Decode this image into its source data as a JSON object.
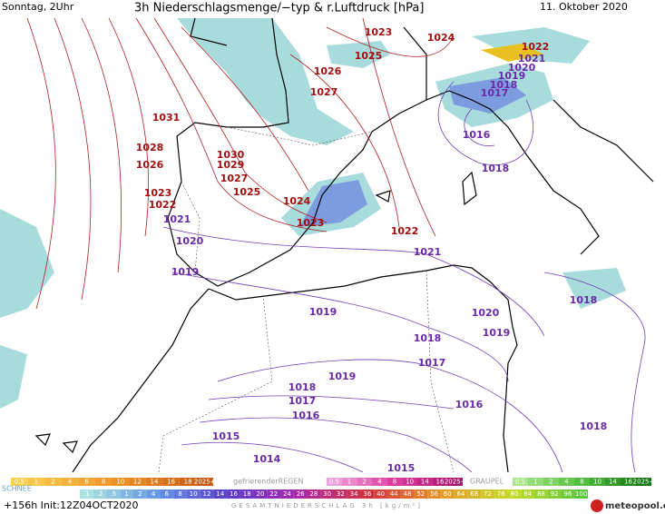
{
  "header": {
    "left": "Sonntag, 2Uhr",
    "title": "3h Niederschlagsmenge/−typ & r.Luftdruck [hPa]",
    "date": "11. Oktober 2020"
  },
  "isobars": {
    "red": {
      "color": "#a01010",
      "labels": [
        "1023",
        "1024",
        "1025",
        "1026",
        "1027",
        "1031",
        "1028",
        "1030",
        "1026",
        "1029",
        "1027",
        "1025",
        "1023",
        "1024",
        "1022",
        "1023",
        "1022",
        "1022"
      ]
    },
    "purple": {
      "color": "#6a2aa8",
      "labels": [
        "1021",
        "1020",
        "1019",
        "1018",
        "1017",
        "1016",
        "1018",
        "1021",
        "1020",
        "1021",
        "1019",
        "1019",
        "1018",
        "1020",
        "1018",
        "1019",
        "1017",
        "1019",
        "1018",
        "1017",
        "1016",
        "1016",
        "1018",
        "1015",
        "1014",
        "1015"
      ]
    }
  },
  "legend": {
    "snow": {
      "scale": [
        "0.5",
        "1",
        "2",
        "4",
        "6",
        "8",
        "10",
        "12",
        "14",
        "16",
        "18",
        "2025+"
      ],
      "label": "SCHNEE"
    },
    "freezing_rain": {
      "label": "gefrierenderREGEN",
      "scale": [
        "0.5",
        "1",
        "2",
        "4",
        "8",
        "10",
        "14",
        "16",
        "2025+"
      ]
    },
    "graupel": {
      "label": "GRAUPEL",
      "scale": [
        "0.5",
        "1",
        "2",
        "4",
        "8",
        "10",
        "14",
        "16",
        "2025+"
      ]
    },
    "total": {
      "scale": [
        ".1",
        ".2",
        ".5",
        "1",
        "2",
        "4",
        "6",
        "8",
        "10",
        "12",
        "14",
        "16",
        "18",
        "20",
        "22",
        "24",
        "26",
        "28",
        "30",
        "32",
        "34",
        "36",
        "40",
        "44",
        "48",
        "52",
        "56",
        "60",
        "64",
        "68",
        "72",
        "76",
        "80",
        "84",
        "88",
        "92",
        "96",
        "100"
      ],
      "label": "GESAMTNIEDERSCHLAG 3h [kg/m²]"
    }
  },
  "footer": {
    "init": "+156h Init:12Z04OCT2020",
    "logo": "meteopool.org"
  }
}
